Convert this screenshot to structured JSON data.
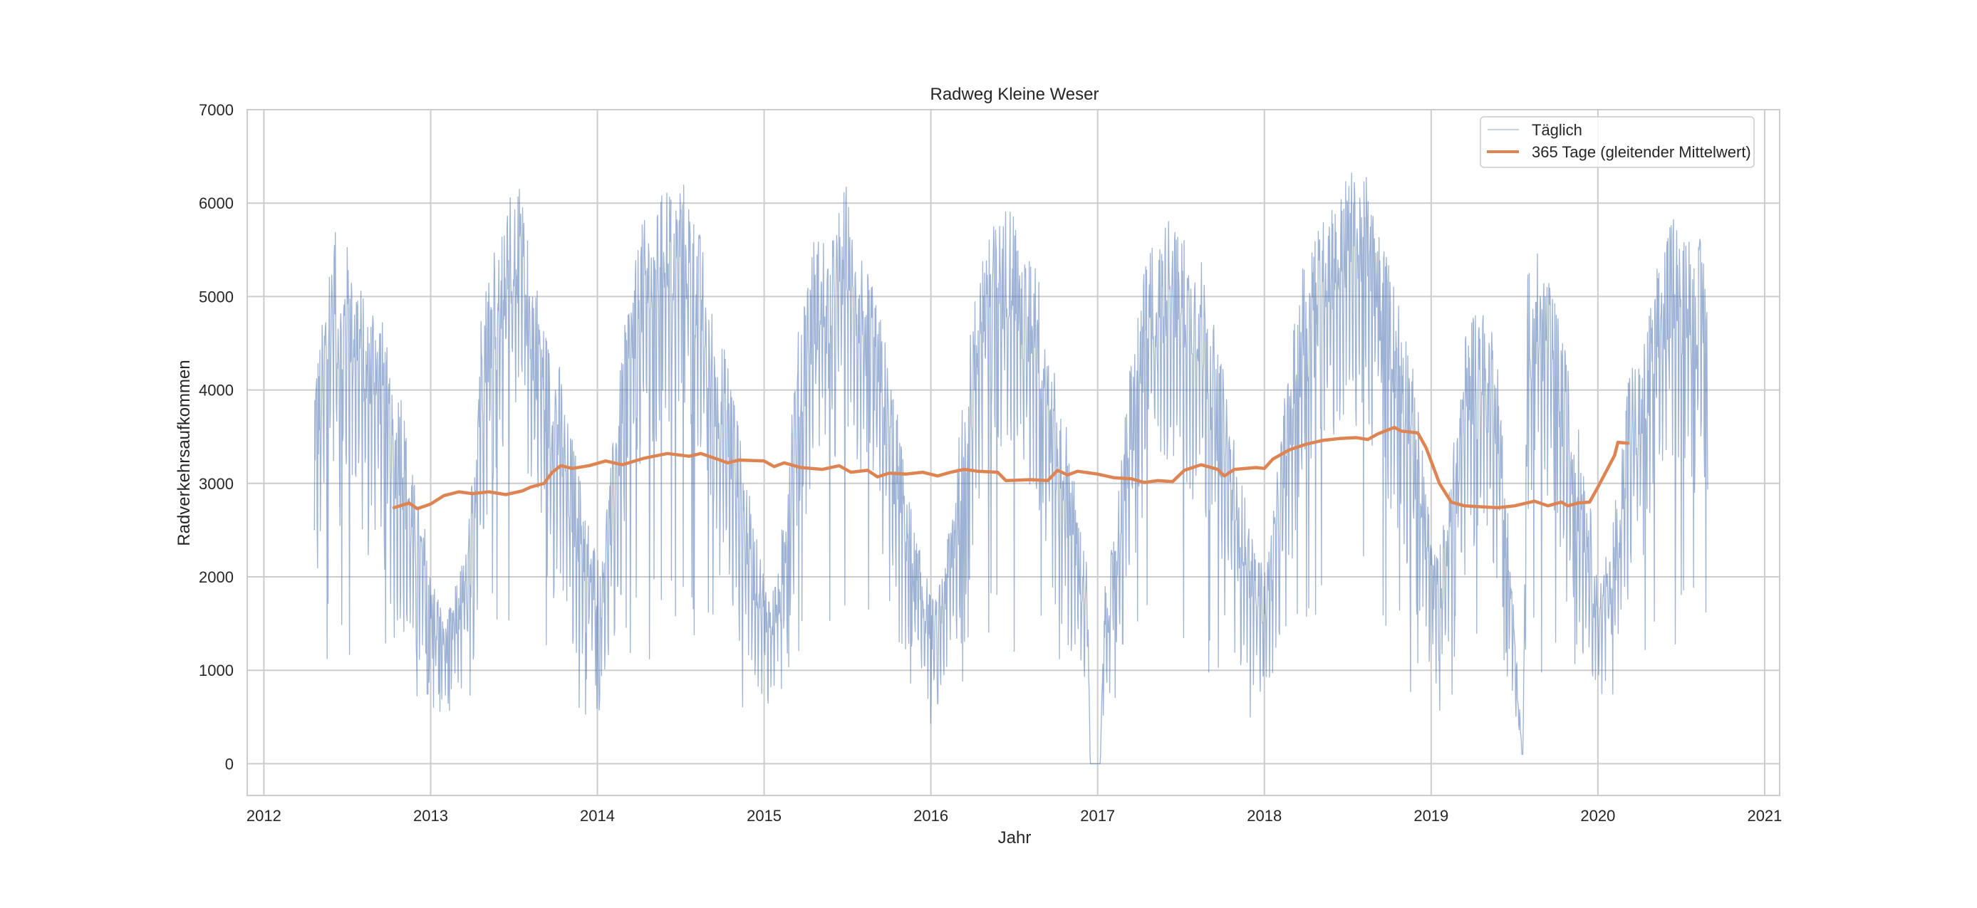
{
  "chart_data": {
    "type": "line",
    "title": "Radweg Kleine Weser",
    "xlabel": "Jahr",
    "ylabel": "Radverkehrsaufkommen",
    "xlim": [
      2011.9,
      2021.09
    ],
    "ylim": [
      -340,
      7000
    ],
    "grid": true,
    "legend_position": "top-right",
    "x_ticks": [
      2012,
      2013,
      2014,
      2015,
      2016,
      2017,
      2018,
      2019,
      2020,
      2021
    ],
    "x_tick_labels": [
      "2012",
      "2013",
      "2014",
      "2015",
      "2016",
      "2017",
      "2018",
      "2019",
      "2020",
      "2021"
    ],
    "y_ticks": [
      0,
      1000,
      2000,
      3000,
      4000,
      5000,
      6000,
      7000
    ],
    "y_tick_labels": [
      "0",
      "1000",
      "2000",
      "3000",
      "4000",
      "5000",
      "6000",
      "7000"
    ],
    "colors": {
      "daily": "#4c72b0",
      "rolling": "#dd8452",
      "grid": "#cccccc",
      "text": "#262626"
    },
    "series": [
      {
        "name": "Täglich",
        "note_weekly_amplitude": 900,
        "x": [
          2012.3,
          2012.34,
          2012.38,
          2012.42,
          2012.46,
          2012.5,
          2012.54,
          2012.58,
          2012.62,
          2012.66,
          2012.7,
          2012.74,
          2012.78,
          2012.82,
          2012.86,
          2012.9,
          2012.94,
          2012.98,
          2013.02,
          2013.06,
          2013.1,
          2013.14,
          2013.18,
          2013.22,
          2013.26,
          2013.3,
          2013.34,
          2013.38,
          2013.42,
          2013.46,
          2013.5,
          2013.54,
          2013.58,
          2013.62,
          2013.66,
          2013.7,
          2013.74,
          2013.78,
          2013.82,
          2013.86,
          2013.9,
          2013.94,
          2013.98,
          2014.02,
          2014.06,
          2014.1,
          2014.14,
          2014.18,
          2014.22,
          2014.26,
          2014.3,
          2014.34,
          2014.38,
          2014.42,
          2014.46,
          2014.5,
          2014.54,
          2014.58,
          2014.62,
          2014.66,
          2014.7,
          2014.74,
          2014.78,
          2014.82,
          2014.86,
          2014.9,
          2014.94,
          2014.98,
          2015.02,
          2015.06,
          2015.1,
          2015.14,
          2015.18,
          2015.22,
          2015.26,
          2015.3,
          2015.34,
          2015.38,
          2015.42,
          2015.46,
          2015.5,
          2015.54,
          2015.58,
          2015.62,
          2015.66,
          2015.7,
          2015.74,
          2015.78,
          2015.82,
          2015.86,
          2015.9,
          2015.94,
          2015.98,
          2016.02,
          2016.06,
          2016.1,
          2016.14,
          2016.18,
          2016.22,
          2016.26,
          2016.3,
          2016.34,
          2016.38,
          2016.42,
          2016.46,
          2016.5,
          2016.54,
          2016.58,
          2016.62,
          2016.66,
          2016.7,
          2016.74,
          2016.78,
          2016.82,
          2016.86,
          2016.9,
          2016.94,
          2016.955,
          2017.015,
          2017.04,
          2017.08,
          2017.12,
          2017.16,
          2017.2,
          2017.24,
          2017.28,
          2017.32,
          2017.36,
          2017.4,
          2017.44,
          2017.48,
          2017.52,
          2017.56,
          2017.6,
          2017.64,
          2017.68,
          2017.72,
          2017.76,
          2017.8,
          2017.84,
          2017.88,
          2017.92,
          2017.96,
          2018.0,
          2018.04,
          2018.08,
          2018.12,
          2018.16,
          2018.2,
          2018.24,
          2018.28,
          2018.32,
          2018.36,
          2018.4,
          2018.44,
          2018.48,
          2018.52,
          2018.56,
          2018.6,
          2018.64,
          2018.68,
          2018.72,
          2018.76,
          2018.8,
          2018.84,
          2018.88,
          2018.92,
          2018.96,
          2019.0,
          2019.04,
          2019.08,
          2019.12,
          2019.16,
          2019.2,
          2019.24,
          2019.28,
          2019.32,
          2019.36,
          2019.39,
          2019.55,
          2019.58,
          2019.62,
          2019.66,
          2019.7,
          2019.74,
          2019.78,
          2019.82,
          2019.86,
          2019.9,
          2019.94,
          2019.98,
          2020.02,
          2020.06,
          2020.1,
          2020.14,
          2020.18,
          2020.22,
          2020.26,
          2020.3,
          2020.34,
          2020.38,
          2020.42,
          2020.46,
          2020.5,
          2020.54,
          2020.58,
          2020.62,
          2020.66
        ],
        "values": [
          3300,
          3600,
          4300,
          4900,
          4100,
          4600,
          4400,
          4200,
          3800,
          4100,
          3900,
          3500,
          2900,
          3200,
          2600,
          2300,
          2000,
          1900,
          1500,
          1300,
          1200,
          1400,
          1600,
          1800,
          2600,
          3900,
          4300,
          4700,
          4600,
          5100,
          5300,
          5200,
          4700,
          4300,
          4100,
          3600,
          3400,
          3300,
          2800,
          2600,
          2300,
          2000,
          1800,
          1700,
          2200,
          2700,
          3300,
          4000,
          4300,
          4800,
          4900,
          4700,
          5200,
          5300,
          5100,
          5400,
          5200,
          4900,
          4700,
          4200,
          3900,
          3600,
          3400,
          3100,
          2600,
          2300,
          1900,
          1700,
          1400,
          1500,
          1800,
          2500,
          3300,
          3900,
          4300,
          4700,
          4800,
          4600,
          4700,
          5100,
          5300,
          4600,
          4700,
          4300,
          4100,
          3800,
          3500,
          3000,
          2700,
          2300,
          1900,
          1700,
          1500,
          1300,
          1500,
          1900,
          2300,
          2800,
          3400,
          4000,
          4500,
          4900,
          4800,
          4900,
          5100,
          5000,
          4600,
          4400,
          4600,
          4100,
          3700,
          3300,
          3000,
          2700,
          2300,
          1900,
          1600,
          0,
          0,
          1400,
          1700,
          2200,
          2800,
          3400,
          3900,
          4300,
          4700,
          4600,
          4800,
          5000,
          4700,
          4700,
          4400,
          4600,
          4300,
          3900,
          3500,
          3200,
          2900,
          2400,
          2200,
          1900,
          1700,
          1600,
          1900,
          2400,
          3000,
          3500,
          4100,
          4500,
          4800,
          4900,
          5100,
          5200,
          5000,
          5300,
          5400,
          5200,
          5500,
          5000,
          4900,
          4600,
          4300,
          4100,
          3800,
          3400,
          2900,
          2500,
          1900,
          1700,
          2000,
          2500,
          3100,
          3600,
          3900,
          4000,
          3900,
          3800,
          3700,
          0,
          4300,
          4600,
          4400,
          4300,
          4000,
          3700,
          3300,
          2900,
          2600,
          2300,
          1700,
          1500,
          1800,
          2100,
          2600,
          3200,
          3500,
          3500,
          3800,
          4300,
          4500,
          4700,
          5000,
          4800,
          4900,
          4500,
          4700,
          4300
        ]
      },
      {
        "name": "365 Tage (gleitender Mittelwert)",
        "x": [
          2012.78,
          2012.87,
          2012.92,
          2013.0,
          2013.08,
          2013.17,
          2013.25,
          2013.35,
          2013.45,
          2013.55,
          2013.6,
          2013.68,
          2013.73,
          2013.78,
          2013.85,
          2013.95,
          2014.05,
          2014.15,
          2014.28,
          2014.42,
          2014.55,
          2014.62,
          2014.72,
          2014.78,
          2014.85,
          2015.0,
          2015.06,
          2015.12,
          2015.22,
          2015.35,
          2015.45,
          2015.52,
          2015.62,
          2015.68,
          2015.75,
          2015.85,
          2015.95,
          2016.04,
          2016.12,
          2016.2,
          2016.28,
          2016.4,
          2016.45,
          2016.6,
          2016.7,
          2016.76,
          2016.82,
          2016.88,
          2017.0,
          2017.1,
          2017.2,
          2017.28,
          2017.36,
          2017.45,
          2017.52,
          2017.62,
          2017.72,
          2017.76,
          2017.82,
          2017.95,
          2018.0,
          2018.05,
          2018.15,
          2018.25,
          2018.35,
          2018.45,
          2018.55,
          2018.62,
          2018.68,
          2018.78,
          2018.82,
          2018.92,
          2018.97,
          2019.05,
          2019.12,
          2019.2,
          2019.3,
          2019.4,
          2019.5,
          2019.62,
          2019.7,
          2019.78,
          2019.82,
          2019.88,
          2019.95,
          2020.0,
          2020.1,
          2020.12,
          2020.18
        ],
        "values": [
          2740,
          2790,
          2730,
          2780,
          2870,
          2910,
          2890,
          2910,
          2880,
          2920,
          2960,
          3000,
          3120,
          3190,
          3160,
          3190,
          3240,
          3200,
          3270,
          3320,
          3290,
          3320,
          3260,
          3220,
          3250,
          3240,
          3180,
          3220,
          3170,
          3150,
          3190,
          3120,
          3140,
          3070,
          3110,
          3100,
          3120,
          3080,
          3120,
          3150,
          3130,
          3120,
          3030,
          3040,
          3030,
          3140,
          3090,
          3130,
          3100,
          3060,
          3050,
          3010,
          3030,
          3020,
          3140,
          3200,
          3150,
          3080,
          3150,
          3170,
          3160,
          3260,
          3360,
          3420,
          3460,
          3480,
          3490,
          3470,
          3530,
          3600,
          3560,
          3540,
          3380,
          3000,
          2800,
          2760,
          2750,
          2740,
          2760,
          2810,
          2760,
          2800,
          2760,
          2790,
          2800,
          2960,
          3300,
          3440,
          3430
        ]
      }
    ]
  }
}
